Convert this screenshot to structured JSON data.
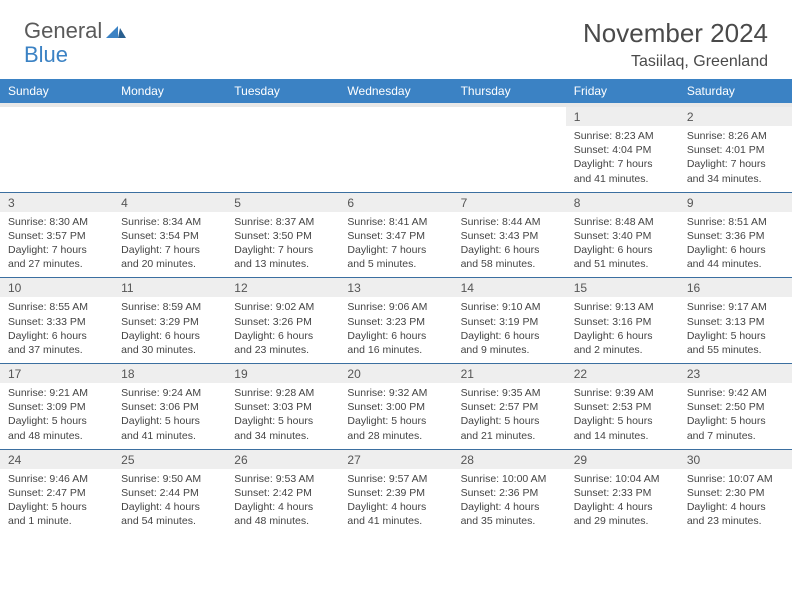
{
  "logo": {
    "part1": "General",
    "part2": "Blue"
  },
  "title": "November 2024",
  "location": "Tasiilaq, Greenland",
  "header_bg": "#3b82c4",
  "daynum_bg": "#eeeeee",
  "border_color": "#3b6fa0",
  "dayNames": [
    "Sunday",
    "Monday",
    "Tuesday",
    "Wednesday",
    "Thursday",
    "Friday",
    "Saturday"
  ],
  "weeks": [
    [
      null,
      null,
      null,
      null,
      null,
      {
        "n": "1",
        "sr": "8:23 AM",
        "ss": "4:04 PM",
        "dl": "7 hours and 41 minutes."
      },
      {
        "n": "2",
        "sr": "8:26 AM",
        "ss": "4:01 PM",
        "dl": "7 hours and 34 minutes."
      }
    ],
    [
      {
        "n": "3",
        "sr": "8:30 AM",
        "ss": "3:57 PM",
        "dl": "7 hours and 27 minutes."
      },
      {
        "n": "4",
        "sr": "8:34 AM",
        "ss": "3:54 PM",
        "dl": "7 hours and 20 minutes."
      },
      {
        "n": "5",
        "sr": "8:37 AM",
        "ss": "3:50 PM",
        "dl": "7 hours and 13 minutes."
      },
      {
        "n": "6",
        "sr": "8:41 AM",
        "ss": "3:47 PM",
        "dl": "7 hours and 5 minutes."
      },
      {
        "n": "7",
        "sr": "8:44 AM",
        "ss": "3:43 PM",
        "dl": "6 hours and 58 minutes."
      },
      {
        "n": "8",
        "sr": "8:48 AM",
        "ss": "3:40 PM",
        "dl": "6 hours and 51 minutes."
      },
      {
        "n": "9",
        "sr": "8:51 AM",
        "ss": "3:36 PM",
        "dl": "6 hours and 44 minutes."
      }
    ],
    [
      {
        "n": "10",
        "sr": "8:55 AM",
        "ss": "3:33 PM",
        "dl": "6 hours and 37 minutes."
      },
      {
        "n": "11",
        "sr": "8:59 AM",
        "ss": "3:29 PM",
        "dl": "6 hours and 30 minutes."
      },
      {
        "n": "12",
        "sr": "9:02 AM",
        "ss": "3:26 PM",
        "dl": "6 hours and 23 minutes."
      },
      {
        "n": "13",
        "sr": "9:06 AM",
        "ss": "3:23 PM",
        "dl": "6 hours and 16 minutes."
      },
      {
        "n": "14",
        "sr": "9:10 AM",
        "ss": "3:19 PM",
        "dl": "6 hours and 9 minutes."
      },
      {
        "n": "15",
        "sr": "9:13 AM",
        "ss": "3:16 PM",
        "dl": "6 hours and 2 minutes."
      },
      {
        "n": "16",
        "sr": "9:17 AM",
        "ss": "3:13 PM",
        "dl": "5 hours and 55 minutes."
      }
    ],
    [
      {
        "n": "17",
        "sr": "9:21 AM",
        "ss": "3:09 PM",
        "dl": "5 hours and 48 minutes."
      },
      {
        "n": "18",
        "sr": "9:24 AM",
        "ss": "3:06 PM",
        "dl": "5 hours and 41 minutes."
      },
      {
        "n": "19",
        "sr": "9:28 AM",
        "ss": "3:03 PM",
        "dl": "5 hours and 34 minutes."
      },
      {
        "n": "20",
        "sr": "9:32 AM",
        "ss": "3:00 PM",
        "dl": "5 hours and 28 minutes."
      },
      {
        "n": "21",
        "sr": "9:35 AM",
        "ss": "2:57 PM",
        "dl": "5 hours and 21 minutes."
      },
      {
        "n": "22",
        "sr": "9:39 AM",
        "ss": "2:53 PM",
        "dl": "5 hours and 14 minutes."
      },
      {
        "n": "23",
        "sr": "9:42 AM",
        "ss": "2:50 PM",
        "dl": "5 hours and 7 minutes."
      }
    ],
    [
      {
        "n": "24",
        "sr": "9:46 AM",
        "ss": "2:47 PM",
        "dl": "5 hours and 1 minute."
      },
      {
        "n": "25",
        "sr": "9:50 AM",
        "ss": "2:44 PM",
        "dl": "4 hours and 54 minutes."
      },
      {
        "n": "26",
        "sr": "9:53 AM",
        "ss": "2:42 PM",
        "dl": "4 hours and 48 minutes."
      },
      {
        "n": "27",
        "sr": "9:57 AM",
        "ss": "2:39 PM",
        "dl": "4 hours and 41 minutes."
      },
      {
        "n": "28",
        "sr": "10:00 AM",
        "ss": "2:36 PM",
        "dl": "4 hours and 35 minutes."
      },
      {
        "n": "29",
        "sr": "10:04 AM",
        "ss": "2:33 PM",
        "dl": "4 hours and 29 minutes."
      },
      {
        "n": "30",
        "sr": "10:07 AM",
        "ss": "2:30 PM",
        "dl": "4 hours and 23 minutes."
      }
    ]
  ],
  "labels": {
    "sunrise": "Sunrise:",
    "sunset": "Sunset:",
    "daylight": "Daylight:"
  }
}
